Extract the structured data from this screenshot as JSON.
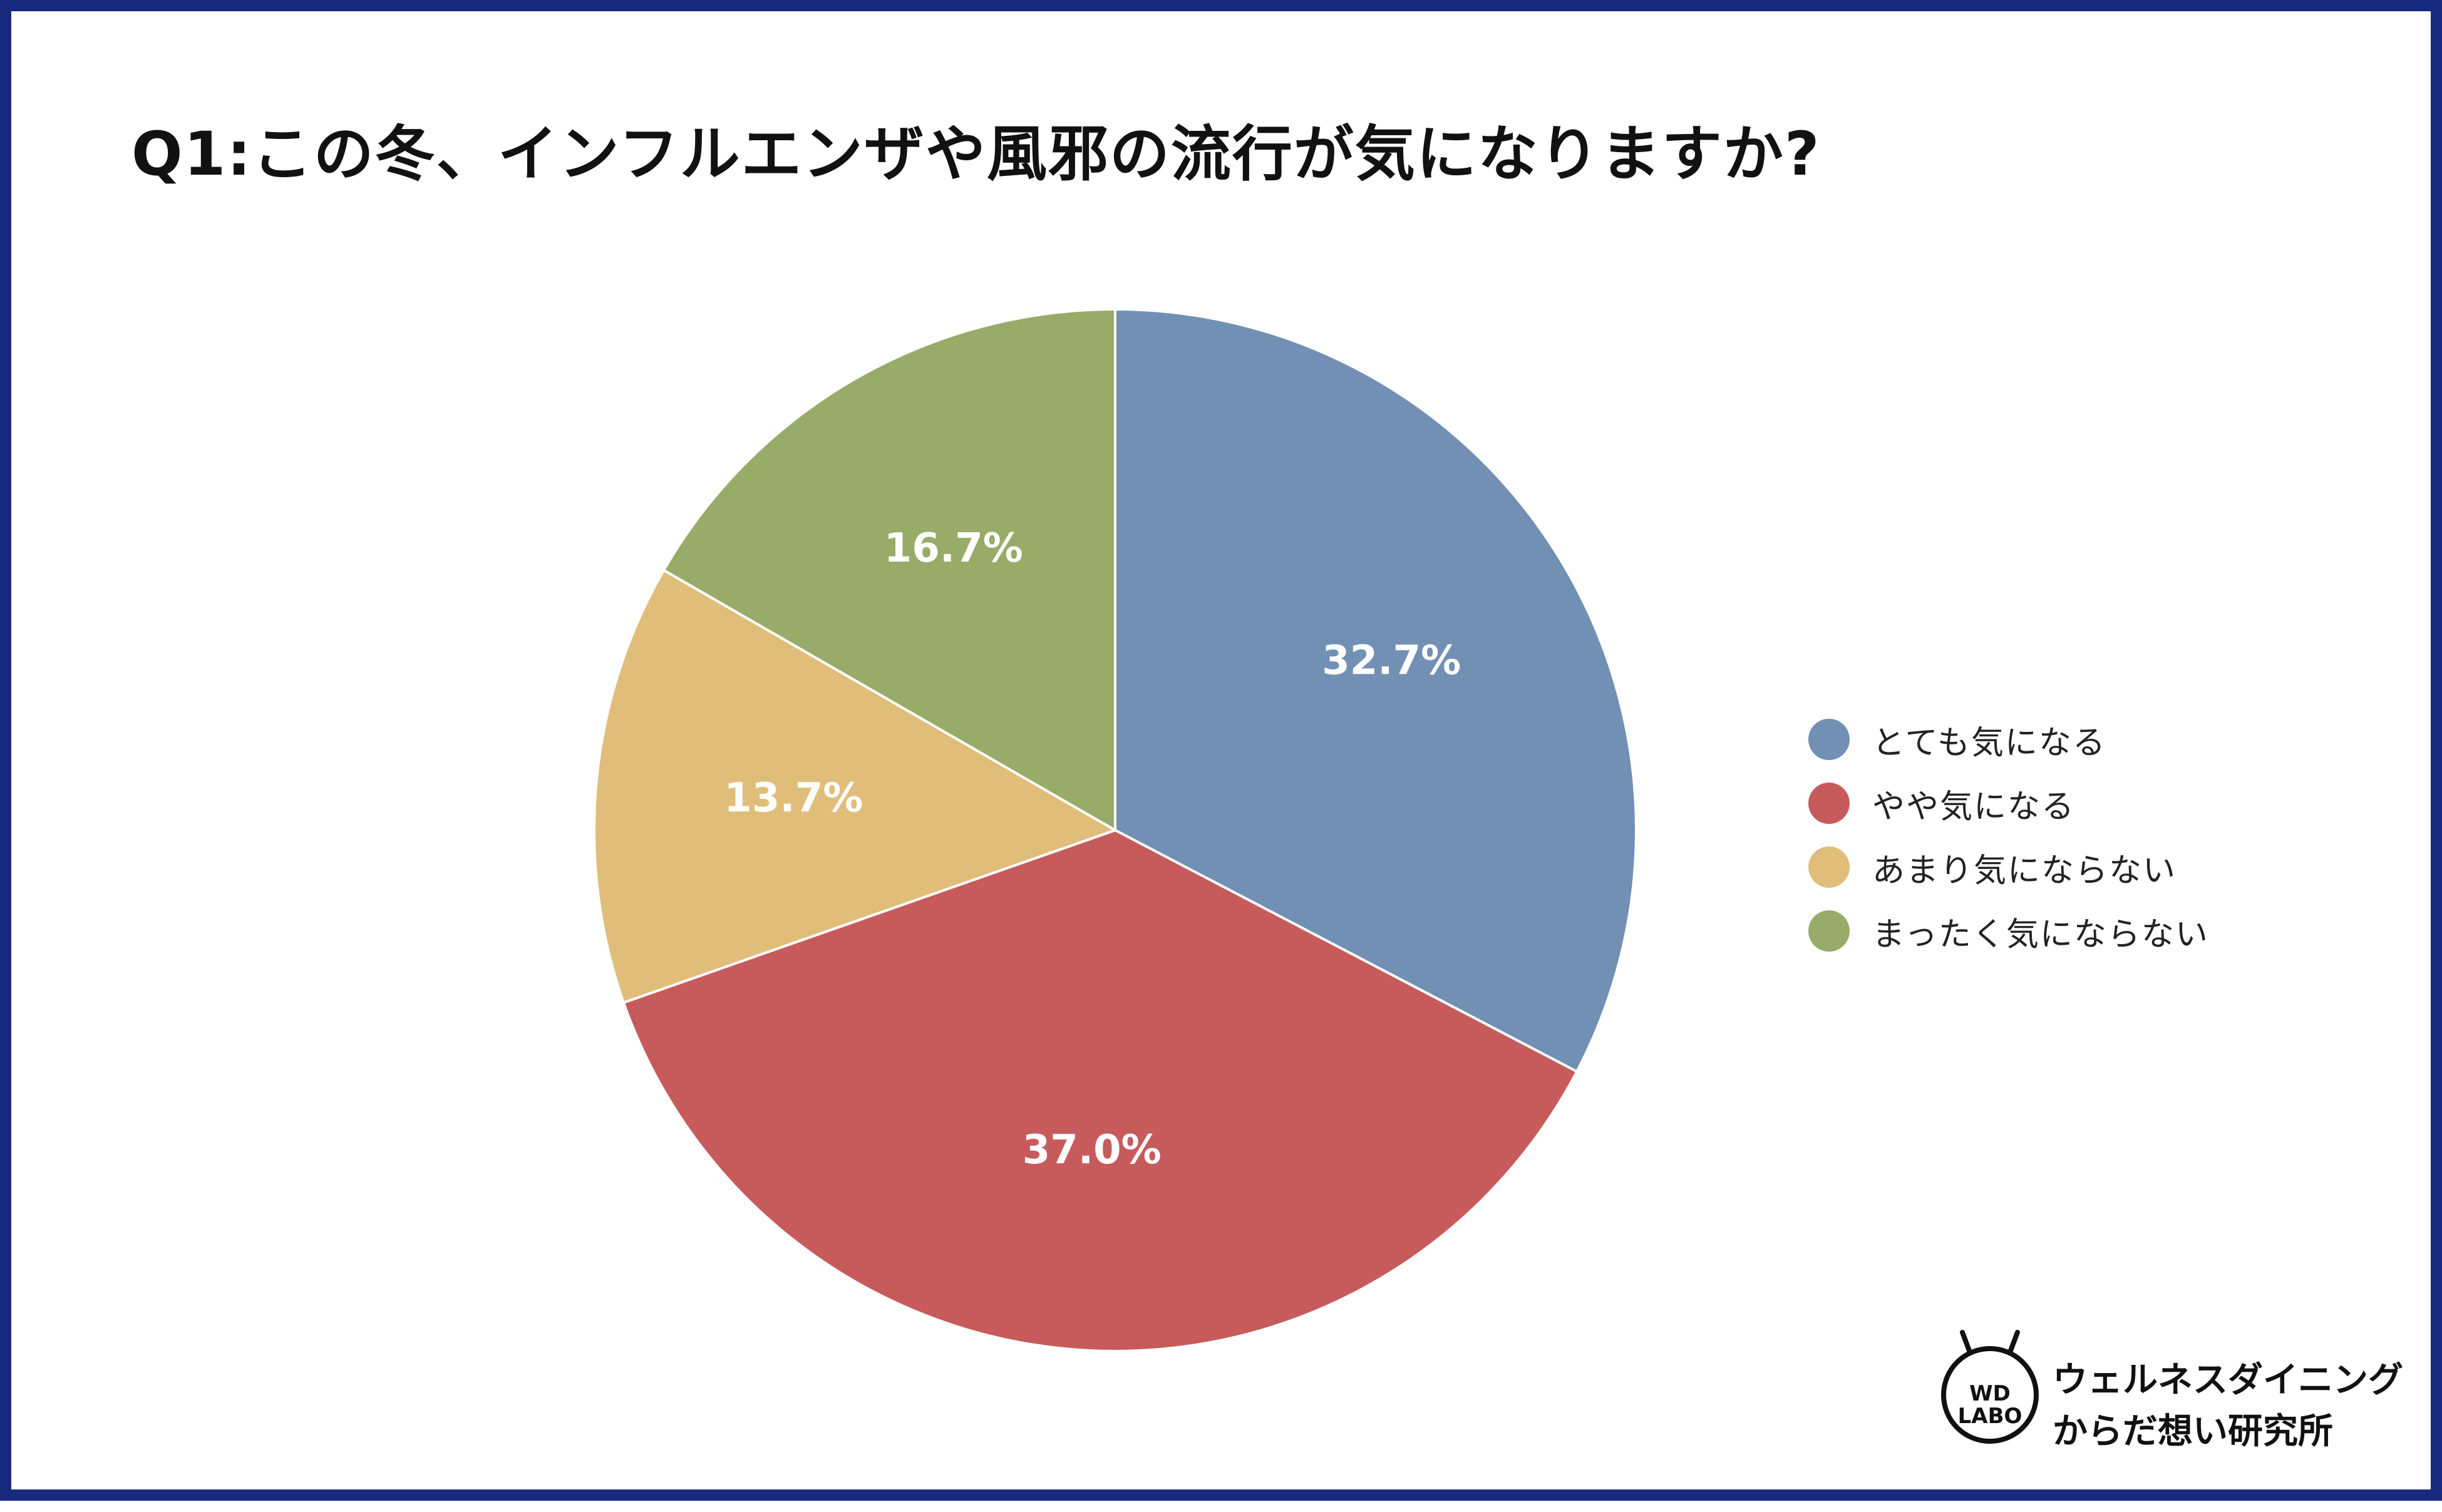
{
  "chart_data": {
    "type": "pie",
    "title": "Q1:この冬、インフルエンザや風邪の流行が気になりますか?",
    "slices": [
      {
        "label": "とても気になる",
        "value": 32.7,
        "display": "32.7%",
        "color": "#7190b3"
      },
      {
        "label": "やや気になる",
        "value": 37.0,
        "display": "37.0%",
        "color": "#c75b5c"
      },
      {
        "label": "あまり気にならない",
        "value": 13.7,
        "display": "13.7%",
        "color": "#e0be7a"
      },
      {
        "label": "まったく気にならない",
        "value": 16.7,
        "display": "16.7%",
        "color": "#98ab68"
      }
    ],
    "start_angle_deg": 0,
    "direction": "clockwise",
    "legend_position": "right"
  },
  "logo": {
    "mark_line1": "WD",
    "mark_line2": "LABO",
    "text_line1": "ウェルネスダイニング",
    "text_line2": "からだ想い研究所"
  },
  "colors": {
    "border": "#17297d",
    "background": "#ffffff"
  }
}
